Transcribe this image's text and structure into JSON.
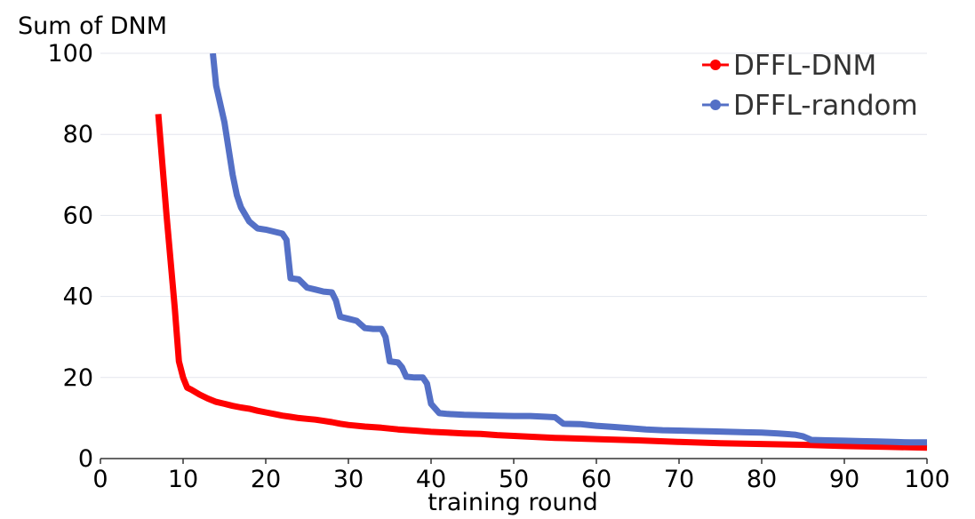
{
  "chart_data": {
    "type": "line",
    "title": "",
    "xlabel": "training round",
    "ylabel": "Sum of DNM",
    "xlim": [
      0,
      100
    ],
    "ylim": [
      0,
      100
    ],
    "xticks": [
      0,
      10,
      20,
      30,
      40,
      50,
      60,
      70,
      80,
      90,
      100
    ],
    "yticks": [
      0,
      20,
      40,
      60,
      80,
      100
    ],
    "grid": "horizontal",
    "legend": "top-right",
    "series": [
      {
        "name": "DFFL-DNM",
        "color": "#ff0000",
        "x": [
          7,
          8,
          9,
          9.5,
          10,
          10.5,
          11,
          12,
          13,
          14,
          15,
          16,
          17,
          18,
          19,
          20,
          21,
          22,
          23,
          24,
          25,
          26,
          27,
          28,
          29,
          30,
          32,
          34,
          36,
          38,
          40,
          42,
          44,
          46,
          48,
          50,
          55,
          60,
          65,
          70,
          75,
          80,
          85,
          90,
          95,
          100
        ],
        "y": [
          85,
          60,
          37,
          24,
          20,
          17.5,
          17,
          15.8,
          14.8,
          14,
          13.5,
          13,
          12.6,
          12.3,
          11.8,
          11.4,
          11,
          10.6,
          10.3,
          10,
          9.8,
          9.6,
          9.3,
          9,
          8.6,
          8.3,
          7.9,
          7.6,
          7.2,
          6.9,
          6.6,
          6.4,
          6.2,
          6.1,
          5.8,
          5.6,
          5.1,
          4.8,
          4.5,
          4.1,
          3.8,
          3.6,
          3.4,
          3.1,
          2.9,
          2.7
        ]
      },
      {
        "name": "DFFL-random",
        "color": "#5470c6",
        "x": [
          13.6,
          14,
          15,
          16,
          16.5,
          17,
          18,
          19,
          20,
          21,
          22,
          22.5,
          23,
          24,
          25,
          26,
          27,
          28,
          28.5,
          29,
          30,
          31,
          32,
          33,
          34,
          34.5,
          35,
          36,
          36.5,
          37,
          38,
          39,
          39.5,
          40,
          41,
          42,
          44,
          46,
          48,
          50,
          52,
          54,
          55,
          56,
          58,
          60,
          62,
          64,
          66,
          68,
          70,
          72,
          74,
          76,
          78,
          80,
          82,
          84,
          85,
          86,
          88,
          90,
          92,
          94,
          96,
          98,
          100
        ],
        "y": [
          100,
          92,
          83,
          70,
          65,
          62,
          58.5,
          56.8,
          56.5,
          56,
          55.5,
          54,
          44.5,
          44.2,
          42.2,
          41.7,
          41.2,
          41,
          39,
          35,
          34.5,
          34,
          32.2,
          32,
          32,
          30,
          24,
          23.7,
          22.5,
          20.2,
          20,
          20,
          18.5,
          13.5,
          11.2,
          11,
          10.8,
          10.7,
          10.6,
          10.5,
          10.5,
          10.3,
          10.2,
          8.6,
          8.5,
          8.1,
          7.8,
          7.5,
          7.2,
          7,
          6.9,
          6.8,
          6.7,
          6.6,
          6.5,
          6.4,
          6.2,
          5.9,
          5.5,
          4.6,
          4.5,
          4.4,
          4.3,
          4.2,
          4.1,
          4,
          4
        ]
      }
    ]
  }
}
